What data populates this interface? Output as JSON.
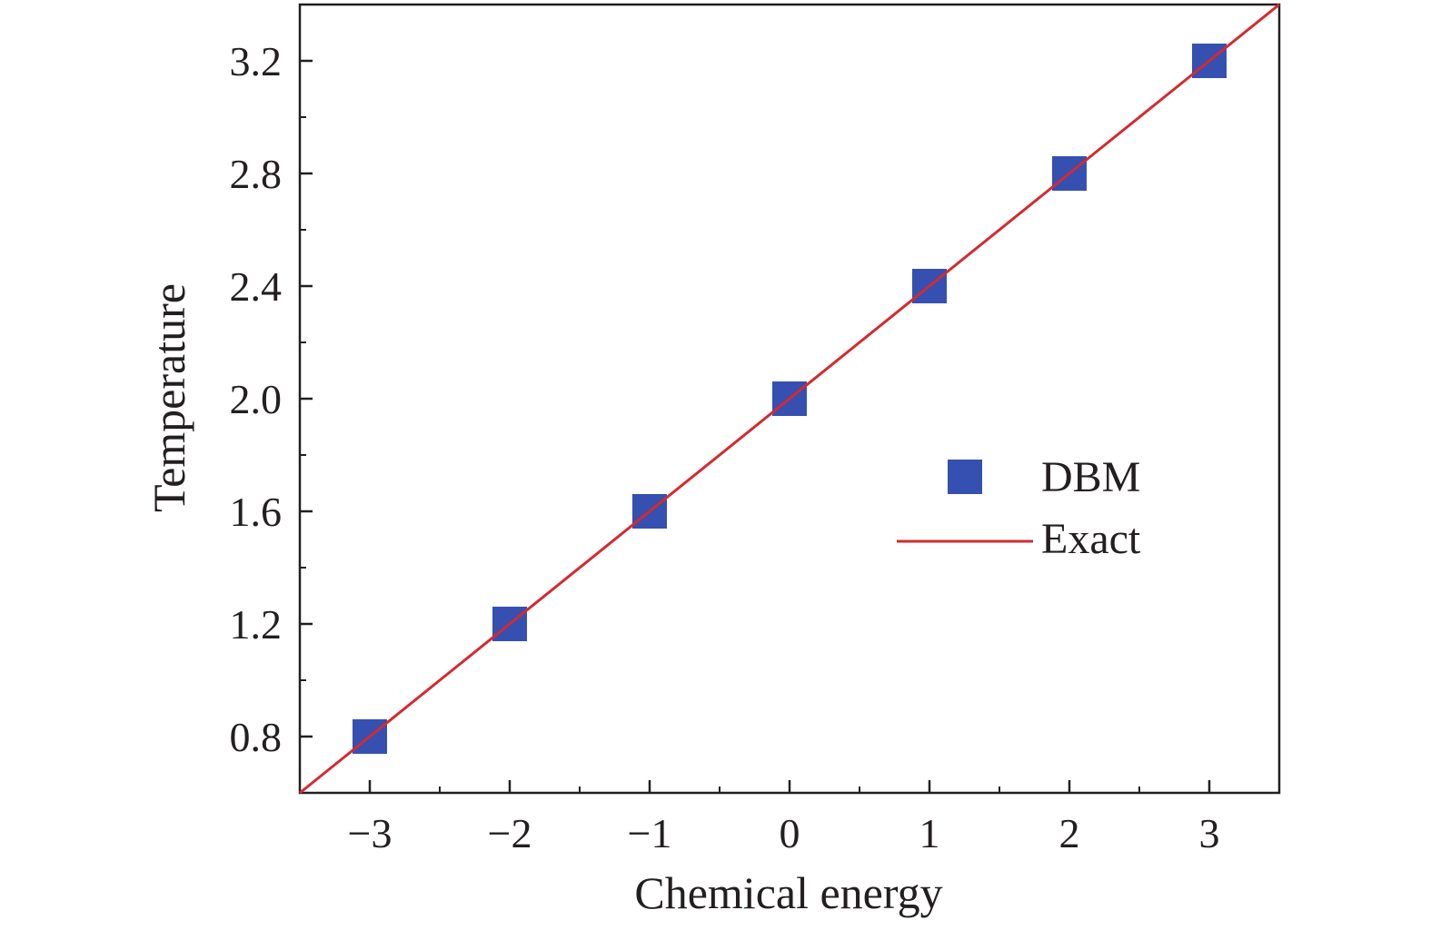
{
  "chart_data": {
    "type": "scatter",
    "xlabel": "Chemical energy",
    "ylabel": "Temperature",
    "xlim": [
      -3.5,
      3.5
    ],
    "ylim": [
      0.6,
      3.4
    ],
    "x_ticks": [
      -3,
      -2,
      -1,
      0,
      1,
      2,
      3
    ],
    "x_tick_labels": [
      "−3",
      "−2",
      "−1",
      "0",
      "1",
      "2",
      "3"
    ],
    "y_ticks": [
      0.8,
      1.2,
      1.6,
      2.0,
      2.4,
      2.8,
      3.2
    ],
    "y_tick_labels": [
      "0.8",
      "1.2",
      "1.6",
      "2.0",
      "2.4",
      "2.8",
      "3.2"
    ],
    "grid": false,
    "legend_position": "center-right",
    "series": [
      {
        "name": "DBM",
        "kind": "scatter",
        "marker": "square",
        "color": "#3550b0",
        "x": [
          -3,
          -2,
          -1,
          0,
          1,
          2,
          3
        ],
        "y": [
          0.8,
          1.2,
          1.6,
          2.0,
          2.4,
          2.8,
          3.2
        ]
      },
      {
        "name": "Exact",
        "kind": "line",
        "color": "#d42a2f",
        "x": [
          -3.5,
          3.5
        ],
        "y": [
          0.6,
          3.4
        ]
      }
    ]
  }
}
